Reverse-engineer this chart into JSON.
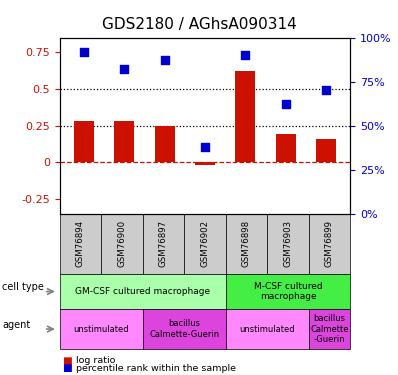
{
  "title": "GDS2180 / AGhsA090314",
  "samples": [
    "GSM76894",
    "GSM76900",
    "GSM76897",
    "GSM76902",
    "GSM76898",
    "GSM76903",
    "GSM76899"
  ],
  "log_ratio": [
    0.28,
    0.28,
    0.25,
    -0.02,
    0.62,
    0.19,
    0.16
  ],
  "percentile_rank": [
    0.92,
    0.82,
    0.87,
    0.38,
    0.9,
    0.62,
    0.7
  ],
  "bar_color": "#cc1100",
  "dot_color": "#0000cc",
  "left_ylim": [
    -0.35,
    0.85
  ],
  "right_ylim": [
    0,
    1.0
  ],
  "left_yticks": [
    -0.25,
    0,
    0.25,
    0.5,
    0.75
  ],
  "right_yticks": [
    0,
    0.25,
    0.5,
    0.75,
    1.0
  ],
  "right_yticklabels": [
    "0%",
    "25%",
    "50%",
    "75%",
    "100%"
  ],
  "hline_dashed_red": 0.0,
  "hline_dotted1": 0.25,
  "hline_dotted2": 0.5,
  "cell_type_groups": [
    {
      "label": "GM-CSF cultured macrophage",
      "start": 0,
      "end": 3,
      "color": "#aaffaa"
    },
    {
      "label": "M-CSF cultured\nmacrophage",
      "start": 4,
      "end": 6,
      "color": "#44ee44"
    }
  ],
  "agent_groups": [
    {
      "label": "unstimulated",
      "start": 0,
      "end": 1,
      "color": "#ff88ff"
    },
    {
      "label": "bacillus\nCalmette-Guerin",
      "start": 2,
      "end": 3,
      "color": "#dd44dd"
    },
    {
      "label": "unstimulated",
      "start": 4,
      "end": 5,
      "color": "#ff88ff"
    },
    {
      "label": "bacillus\nCalmette\n-Guerin",
      "start": 6,
      "end": 6,
      "color": "#dd44dd"
    }
  ],
  "legend_items": [
    {
      "label": "log ratio",
      "color": "#cc1100"
    },
    {
      "label": "percentile rank within the sample",
      "color": "#0000cc"
    }
  ],
  "sample_box_color": "#cccccc",
  "title_fontsize": 11,
  "tick_fontsize": 8
}
